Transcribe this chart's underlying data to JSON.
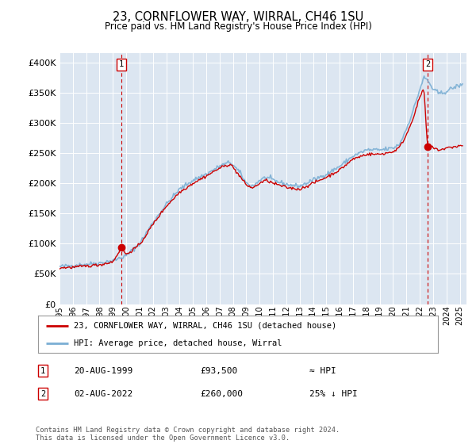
{
  "title": "23, CORNFLOWER WAY, WIRRAL, CH46 1SU",
  "subtitle": "Price paid vs. HM Land Registry's House Price Index (HPI)",
  "ylabel_ticks": [
    "£0",
    "£50K",
    "£100K",
    "£150K",
    "£200K",
    "£250K",
    "£300K",
    "£350K",
    "£400K"
  ],
  "ytick_vals": [
    0,
    50000,
    100000,
    150000,
    200000,
    250000,
    300000,
    350000,
    400000
  ],
  "ylim": [
    0,
    415000
  ],
  "xlim_start": 1995.0,
  "xlim_end": 2025.5,
  "background_color": "#ffffff",
  "plot_bg_color": "#dce6f1",
  "grid_color": "#ffffff",
  "property_color": "#cc0000",
  "hpi_color": "#7bafd4",
  "sale1_x": 1999.64,
  "sale1_y": 93500,
  "sale2_x": 2022.58,
  "sale2_y": 260000,
  "legend_label1": "23, CORNFLOWER WAY, WIRRAL, CH46 1SU (detached house)",
  "legend_label2": "HPI: Average price, detached house, Wirral",
  "note1_num": "1",
  "note1_date": "20-AUG-1999",
  "note1_price": "£93,500",
  "note1_hpi": "≈ HPI",
  "note2_num": "2",
  "note2_date": "02-AUG-2022",
  "note2_price": "£260,000",
  "note2_hpi": "25% ↓ HPI",
  "footer": "Contains HM Land Registry data © Crown copyright and database right 2024.\nThis data is licensed under the Open Government Licence v3.0.",
  "xtick_years": [
    1995,
    1996,
    1997,
    1998,
    1999,
    2000,
    2001,
    2002,
    2003,
    2004,
    2005,
    2006,
    2007,
    2008,
    2009,
    2010,
    2011,
    2012,
    2013,
    2014,
    2015,
    2016,
    2017,
    2018,
    2019,
    2020,
    2021,
    2022,
    2023,
    2024,
    2025
  ],
  "hpi_anchors": [
    [
      1995.0,
      62000
    ],
    [
      1996.0,
      64000
    ],
    [
      1997.0,
      66000
    ],
    [
      1998.0,
      68000
    ],
    [
      1999.0,
      72000
    ],
    [
      2000.0,
      80000
    ],
    [
      2001.0,
      100000
    ],
    [
      2002.0,
      135000
    ],
    [
      2003.0,
      165000
    ],
    [
      2004.0,
      190000
    ],
    [
      2005.0,
      205000
    ],
    [
      2006.0,
      215000
    ],
    [
      2007.0,
      228000
    ],
    [
      2007.8,
      235000
    ],
    [
      2008.5,
      218000
    ],
    [
      2009.0,
      200000
    ],
    [
      2009.5,
      195000
    ],
    [
      2010.0,
      205000
    ],
    [
      2010.5,
      210000
    ],
    [
      2011.0,
      205000
    ],
    [
      2012.0,
      198000
    ],
    [
      2013.0,
      195000
    ],
    [
      2014.0,
      205000
    ],
    [
      2015.0,
      215000
    ],
    [
      2016.0,
      228000
    ],
    [
      2017.0,
      245000
    ],
    [
      2018.0,
      255000
    ],
    [
      2019.0,
      255000
    ],
    [
      2020.0,
      258000
    ],
    [
      2020.5,
      265000
    ],
    [
      2021.0,
      290000
    ],
    [
      2021.5,
      320000
    ],
    [
      2022.0,
      355000
    ],
    [
      2022.3,
      375000
    ],
    [
      2022.6,
      370000
    ],
    [
      2023.0,
      355000
    ],
    [
      2023.5,
      348000
    ],
    [
      2024.0,
      352000
    ],
    [
      2024.5,
      358000
    ],
    [
      2025.0,
      362000
    ]
  ],
  "prop_anchors": [
    [
      1995.0,
      60000
    ],
    [
      1996.0,
      61000
    ],
    [
      1997.0,
      63000
    ],
    [
      1998.0,
      65000
    ],
    [
      1999.0,
      70000
    ],
    [
      1999.64,
      93500
    ],
    [
      2000.0,
      82000
    ],
    [
      2001.0,
      98000
    ],
    [
      2002.0,
      132000
    ],
    [
      2003.0,
      162000
    ],
    [
      2004.0,
      185000
    ],
    [
      2005.0,
      200000
    ],
    [
      2006.0,
      212000
    ],
    [
      2007.0,
      225000
    ],
    [
      2007.8,
      232000
    ],
    [
      2008.5,
      212000
    ],
    [
      2009.0,
      197000
    ],
    [
      2009.5,
      192000
    ],
    [
      2010.0,
      200000
    ],
    [
      2010.5,
      205000
    ],
    [
      2011.0,
      200000
    ],
    [
      2012.0,
      193000
    ],
    [
      2013.0,
      190000
    ],
    [
      2014.0,
      200000
    ],
    [
      2015.0,
      210000
    ],
    [
      2016.0,
      222000
    ],
    [
      2017.0,
      240000
    ],
    [
      2018.0,
      248000
    ],
    [
      2019.0,
      248000
    ],
    [
      2020.0,
      252000
    ],
    [
      2020.5,
      260000
    ],
    [
      2021.0,
      280000
    ],
    [
      2021.5,
      308000
    ],
    [
      2022.0,
      342000
    ],
    [
      2022.3,
      358000
    ],
    [
      2022.58,
      260000
    ],
    [
      2022.8,
      262000
    ],
    [
      2023.0,
      258000
    ],
    [
      2023.5,
      255000
    ],
    [
      2024.0,
      258000
    ],
    [
      2024.5,
      260000
    ],
    [
      2025.0,
      262000
    ]
  ]
}
